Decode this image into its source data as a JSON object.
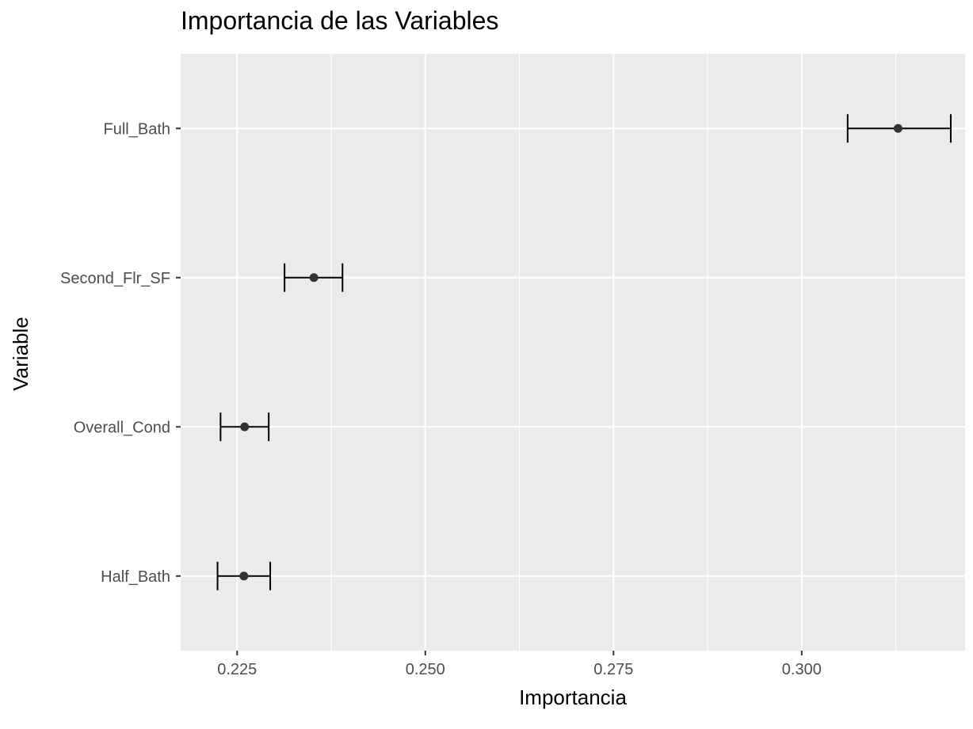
{
  "chart_data": {
    "type": "scatter",
    "title": "Importancia de las Variables",
    "xlabel": "Importancia",
    "ylabel": "Variable",
    "xlim": [
      0.2175,
      0.3217
    ],
    "x_ticks": [
      "0.225",
      "0.250",
      "0.275",
      "0.300"
    ],
    "x_tick_values": [
      0.225,
      0.25,
      0.275,
      0.3
    ],
    "categories": [
      "Full_Bath",
      "Second_Flr_SF",
      "Overall_Cond",
      "Half_Bath"
    ],
    "points": [
      {
        "variable": "Full_Bath",
        "importance": 0.3128,
        "lower": 0.3061,
        "upper": 0.3198
      },
      {
        "variable": "Second_Flr_SF",
        "importance": 0.2352,
        "lower": 0.2313,
        "upper": 0.239
      },
      {
        "variable": "Overall_Cond",
        "importance": 0.226,
        "lower": 0.2228,
        "upper": 0.2292
      },
      {
        "variable": "Half_Bath",
        "importance": 0.2259,
        "lower": 0.2224,
        "upper": 0.2294
      }
    ],
    "grid": true,
    "legend": "none",
    "colors": {
      "panel": "#ebebeb",
      "grid": "#ffffff",
      "point": "#333333",
      "errorbar": "#000000"
    }
  }
}
